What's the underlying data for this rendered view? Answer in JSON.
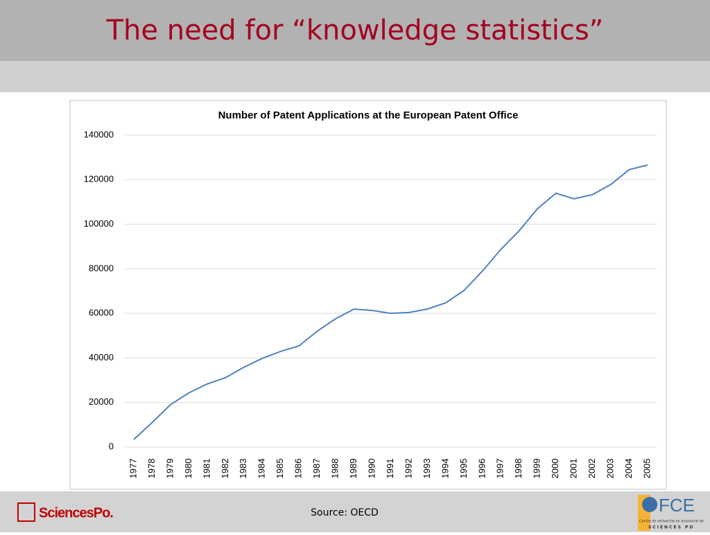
{
  "title": "The need for “knowledge statistics”",
  "chart_data": {
    "type": "line",
    "title": "Number of Patent Applications at the European Patent Office",
    "categories": [
      "1977",
      "1978",
      "1979",
      "1980",
      "1981",
      "1982",
      "1983",
      "1984",
      "1985",
      "1986",
      "1987",
      "1988",
      "1989",
      "1990",
      "1991",
      "1992",
      "1993",
      "1994",
      "1995",
      "1996",
      "1997",
      "1998",
      "1999",
      "2000",
      "2001",
      "2002",
      "2003",
      "2004",
      "2005"
    ],
    "values": [
      3400,
      11000,
      19000,
      24300,
      28300,
      31100,
      35800,
      39800,
      42900,
      45400,
      52000,
      57600,
      61900,
      61300,
      60000,
      60400,
      61900,
      64700,
      70300,
      79000,
      88700,
      97100,
      107000,
      113900,
      111400,
      113300,
      117900,
      124500,
      126600
    ],
    "color": "#4f81bd",
    "ylim": [
      0,
      140000
    ],
    "yticks": [
      0,
      20000,
      40000,
      60000,
      80000,
      100000,
      120000,
      140000
    ],
    "grid": true
  },
  "source": "Source: OECD",
  "logos": {
    "left": "SciencesPo.",
    "right": "FCE",
    "right_caption": "Centre de recherche en économie de",
    "right_school": "SCIENCES PO"
  }
}
